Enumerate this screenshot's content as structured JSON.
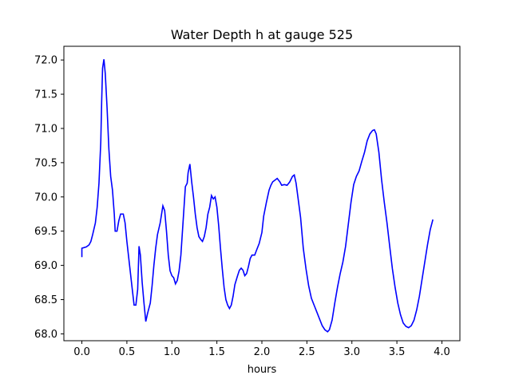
{
  "chart_data": {
    "type": "line",
    "title": "Water Depth h at gauge 525",
    "xlabel": "hours",
    "ylabel": "",
    "xlim": [
      -0.2,
      4.2
    ],
    "ylim": [
      67.9,
      72.2
    ],
    "xticks": [
      0.0,
      0.5,
      1.0,
      1.5,
      2.0,
      2.5,
      3.0,
      3.5,
      4.0
    ],
    "xtick_labels": [
      "0.0",
      "0.5",
      "1.0",
      "1.5",
      "2.0",
      "2.5",
      "3.0",
      "3.5",
      "4.0"
    ],
    "yticks": [
      68.0,
      68.5,
      69.0,
      69.5,
      70.0,
      70.5,
      71.0,
      71.5,
      72.0
    ],
    "ytick_labels": [
      "68.0",
      "68.5",
      "69.0",
      "69.5",
      "70.0",
      "70.5",
      "71.0",
      "71.5",
      "72.0"
    ],
    "grid": false,
    "color": "#0000ff",
    "series": [
      {
        "points": [
          [
            0.0,
            69.12
          ],
          [
            0.0,
            69.25
          ],
          [
            0.05,
            69.27
          ],
          [
            0.08,
            69.3
          ],
          [
            0.1,
            69.35
          ],
          [
            0.12,
            69.45
          ],
          [
            0.15,
            69.62
          ],
          [
            0.17,
            69.85
          ],
          [
            0.19,
            70.2
          ],
          [
            0.21,
            70.8
          ],
          [
            0.22,
            71.4
          ],
          [
            0.23,
            71.88
          ],
          [
            0.245,
            72.01
          ],
          [
            0.26,
            71.8
          ],
          [
            0.28,
            71.3
          ],
          [
            0.3,
            70.7
          ],
          [
            0.32,
            70.3
          ],
          [
            0.34,
            70.1
          ],
          [
            0.36,
            69.75
          ],
          [
            0.37,
            69.5
          ],
          [
            0.39,
            69.5
          ],
          [
            0.41,
            69.65
          ],
          [
            0.43,
            69.75
          ],
          [
            0.46,
            69.75
          ],
          [
            0.48,
            69.62
          ],
          [
            0.5,
            69.35
          ],
          [
            0.53,
            69.0
          ],
          [
            0.56,
            68.65
          ],
          [
            0.58,
            68.42
          ],
          [
            0.6,
            68.42
          ],
          [
            0.62,
            68.65
          ],
          [
            0.635,
            69.28
          ],
          [
            0.65,
            69.15
          ],
          [
            0.67,
            68.75
          ],
          [
            0.69,
            68.45
          ],
          [
            0.71,
            68.18
          ],
          [
            0.73,
            68.3
          ],
          [
            0.76,
            68.45
          ],
          [
            0.78,
            68.7
          ],
          [
            0.8,
            69.0
          ],
          [
            0.82,
            69.25
          ],
          [
            0.84,
            69.45
          ],
          [
            0.87,
            69.62
          ],
          [
            0.9,
            69.87
          ],
          [
            0.92,
            69.8
          ],
          [
            0.94,
            69.5
          ],
          [
            0.96,
            69.15
          ],
          [
            0.98,
            68.92
          ],
          [
            1.0,
            68.85
          ],
          [
            1.02,
            68.82
          ],
          [
            1.04,
            68.73
          ],
          [
            1.06,
            68.78
          ],
          [
            1.08,
            68.92
          ],
          [
            1.1,
            69.15
          ],
          [
            1.12,
            69.55
          ],
          [
            1.14,
            69.95
          ],
          [
            1.15,
            70.15
          ],
          [
            1.17,
            70.2
          ],
          [
            1.18,
            70.35
          ],
          [
            1.2,
            70.48
          ],
          [
            1.22,
            70.22
          ],
          [
            1.24,
            70.0
          ],
          [
            1.26,
            69.75
          ],
          [
            1.28,
            69.55
          ],
          [
            1.3,
            69.42
          ],
          [
            1.32,
            69.38
          ],
          [
            1.34,
            69.35
          ],
          [
            1.36,
            69.42
          ],
          [
            1.38,
            69.55
          ],
          [
            1.4,
            69.75
          ],
          [
            1.42,
            69.85
          ],
          [
            1.44,
            70.02
          ],
          [
            1.46,
            69.97
          ],
          [
            1.48,
            70.0
          ],
          [
            1.5,
            69.85
          ],
          [
            1.52,
            69.58
          ],
          [
            1.54,
            69.25
          ],
          [
            1.56,
            68.95
          ],
          [
            1.58,
            68.68
          ],
          [
            1.6,
            68.5
          ],
          [
            1.62,
            68.42
          ],
          [
            1.64,
            68.37
          ],
          [
            1.66,
            68.42
          ],
          [
            1.68,
            68.55
          ],
          [
            1.7,
            68.72
          ],
          [
            1.73,
            68.85
          ],
          [
            1.75,
            68.93
          ],
          [
            1.77,
            68.96
          ],
          [
            1.79,
            68.93
          ],
          [
            1.81,
            68.85
          ],
          [
            1.83,
            68.88
          ],
          [
            1.85,
            68.98
          ],
          [
            1.87,
            69.1
          ],
          [
            1.89,
            69.15
          ],
          [
            1.92,
            69.15
          ],
          [
            1.94,
            69.22
          ],
          [
            1.97,
            69.32
          ],
          [
            2.0,
            69.48
          ],
          [
            2.02,
            69.72
          ],
          [
            2.05,
            69.92
          ],
          [
            2.08,
            70.1
          ],
          [
            2.1,
            70.17
          ],
          [
            2.12,
            70.22
          ],
          [
            2.15,
            70.25
          ],
          [
            2.17,
            70.27
          ],
          [
            2.2,
            70.22
          ],
          [
            2.22,
            70.17
          ],
          [
            2.25,
            70.18
          ],
          [
            2.28,
            70.17
          ],
          [
            2.31,
            70.22
          ],
          [
            2.34,
            70.3
          ],
          [
            2.36,
            70.32
          ],
          [
            2.38,
            70.2
          ],
          [
            2.4,
            70.0
          ],
          [
            2.43,
            69.7
          ],
          [
            2.46,
            69.25
          ],
          [
            2.49,
            68.95
          ],
          [
            2.52,
            68.7
          ],
          [
            2.55,
            68.52
          ],
          [
            2.58,
            68.42
          ],
          [
            2.61,
            68.32
          ],
          [
            2.64,
            68.22
          ],
          [
            2.67,
            68.12
          ],
          [
            2.7,
            68.06
          ],
          [
            2.73,
            68.03
          ],
          [
            2.75,
            68.06
          ],
          [
            2.78,
            68.2
          ],
          [
            2.81,
            68.45
          ],
          [
            2.84,
            68.68
          ],
          [
            2.87,
            68.88
          ],
          [
            2.9,
            69.05
          ],
          [
            2.93,
            69.28
          ],
          [
            2.96,
            69.6
          ],
          [
            2.99,
            69.92
          ],
          [
            3.02,
            70.18
          ],
          [
            3.05,
            70.3
          ],
          [
            3.08,
            70.38
          ],
          [
            3.11,
            70.52
          ],
          [
            3.14,
            70.65
          ],
          [
            3.17,
            70.82
          ],
          [
            3.2,
            70.92
          ],
          [
            3.23,
            70.97
          ],
          [
            3.25,
            70.98
          ],
          [
            3.27,
            70.92
          ],
          [
            3.3,
            70.65
          ],
          [
            3.33,
            70.25
          ],
          [
            3.36,
            69.92
          ],
          [
            3.39,
            69.62
          ],
          [
            3.42,
            69.28
          ],
          [
            3.45,
            68.95
          ],
          [
            3.48,
            68.68
          ],
          [
            3.51,
            68.45
          ],
          [
            3.54,
            68.28
          ],
          [
            3.57,
            68.16
          ],
          [
            3.6,
            68.11
          ],
          [
            3.63,
            68.09
          ],
          [
            3.66,
            68.12
          ],
          [
            3.69,
            68.2
          ],
          [
            3.72,
            68.35
          ],
          [
            3.75,
            68.55
          ],
          [
            3.78,
            68.8
          ],
          [
            3.81,
            69.05
          ],
          [
            3.84,
            69.3
          ],
          [
            3.87,
            69.52
          ],
          [
            3.9,
            69.67
          ]
        ]
      }
    ]
  }
}
